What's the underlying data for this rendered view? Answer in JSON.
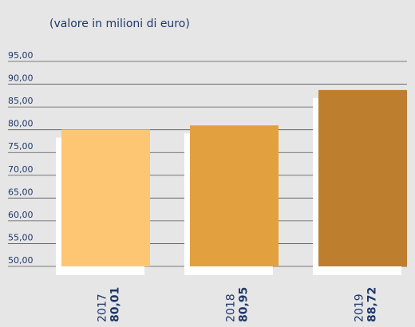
{
  "chart_data": {
    "type": "bar",
    "subtitle": "(valore in milioni di euro)",
    "categories": [
      "2017",
      "2018",
      "2019"
    ],
    "values": [
      80.01,
      80.95,
      88.72
    ],
    "value_labels": [
      "80,01",
      "80,95",
      "88,72"
    ],
    "colors": [
      "#fdc673",
      "#e2a03f",
      "#bd7f2e"
    ],
    "ylim": [
      50,
      95
    ],
    "yticks": [
      {
        "value": 50,
        "label": "50,00"
      },
      {
        "value": 55,
        "label": "55,00"
      },
      {
        "value": 60,
        "label": "60,00"
      },
      {
        "value": 65,
        "label": "65,00"
      },
      {
        "value": 70,
        "label": "70,00"
      },
      {
        "value": 75,
        "label": "75,00"
      },
      {
        "value": 80,
        "label": "80,00"
      },
      {
        "value": 85,
        "label": "85,00"
      },
      {
        "value": 90,
        "label": "90,00"
      },
      {
        "value": 95,
        "label": "95,00"
      }
    ],
    "grid": true
  }
}
